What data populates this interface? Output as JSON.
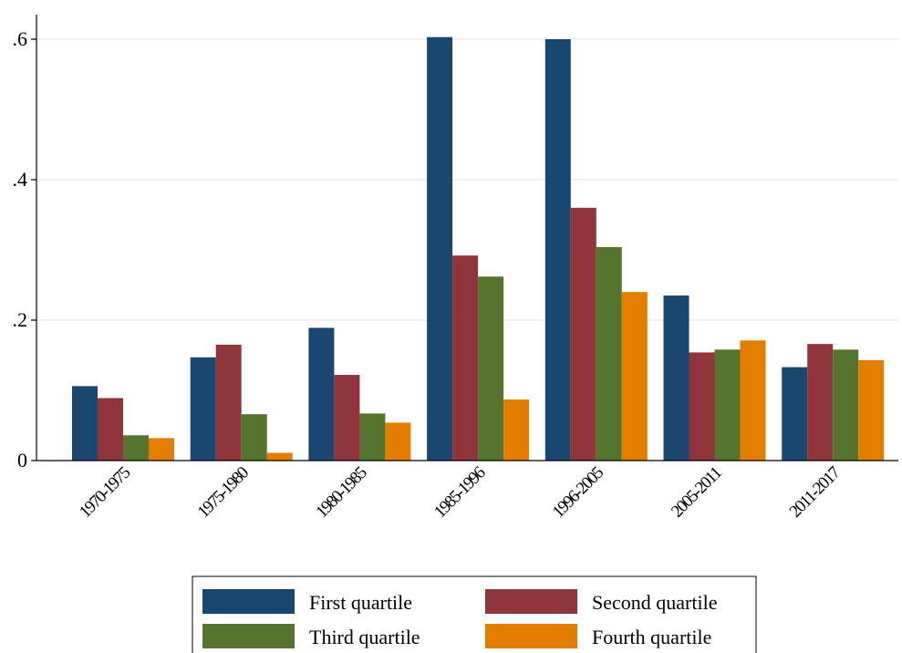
{
  "chart_data": {
    "type": "bar",
    "title": "",
    "xlabel": "",
    "ylabel": "",
    "categories": [
      "1970-1975",
      "1975-1980",
      "1980-1985",
      "1985-1996",
      "1996-2005",
      "2005-2011",
      "2011-2017"
    ],
    "series": [
      {
        "name": "First quartile",
        "color": "#1a476f",
        "values": [
          0.106,
          0.147,
          0.189,
          0.603,
          0.6,
          0.235,
          0.133
        ]
      },
      {
        "name": "Second quartile",
        "color": "#90353b",
        "values": [
          0.089,
          0.165,
          0.122,
          0.292,
          0.36,
          0.154,
          0.166
        ]
      },
      {
        "name": "Third quartile",
        "color": "#55752f",
        "values": [
          0.036,
          0.066,
          0.067,
          0.262,
          0.304,
          0.158,
          0.158
        ]
      },
      {
        "name": "Fourth quartile",
        "color": "#e37e00",
        "values": [
          0.032,
          0.011,
          0.054,
          0.087,
          0.24,
          0.171,
          0.143
        ]
      }
    ],
    "ylim": [
      0,
      0.6
    ],
    "yticks": [
      0,
      0.2,
      0.4,
      0.6
    ],
    "ytick_labels": [
      "0",
      ".2",
      ".4",
      ".6"
    ],
    "grid": true,
    "legend_position": "bottom"
  }
}
